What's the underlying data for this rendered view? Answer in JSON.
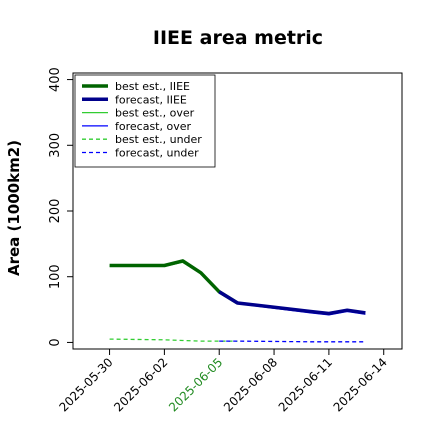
{
  "chart_data": {
    "type": "line",
    "title": "IIEE area metric",
    "xlabel": "",
    "ylabel": "Area (1000km2)",
    "xlim": [
      "2025-05-28",
      "2025-06-15"
    ],
    "ylim": [
      -10,
      410
    ],
    "x_ticks": [
      "2025-05-30",
      "2025-06-02",
      "2025-06-05",
      "2025-06-08",
      "2025-06-11",
      "2025-06-14"
    ],
    "x_tick_colors": [
      "#000000",
      "#000000",
      "#228b22",
      "#000000",
      "#000000",
      "#000000"
    ],
    "y_ticks": [
      0,
      100,
      200,
      300,
      400
    ],
    "grid": false,
    "legend_position": "top-left",
    "series": [
      {
        "name": "best est., IIEE",
        "color": "#006400",
        "style": "solid",
        "weight": "thick",
        "points": [
          {
            "x": "2025-05-30",
            "y": 117
          },
          {
            "x": "2025-06-02",
            "y": 117
          },
          {
            "x": "2025-06-03",
            "y": 124
          },
          {
            "x": "2025-06-04",
            "y": 106
          },
          {
            "x": "2025-06-05",
            "y": 77
          },
          {
            "x": "2025-06-06",
            "y": 60
          }
        ]
      },
      {
        "name": "forecast, IIEE",
        "color": "#00008b",
        "style": "solid",
        "weight": "thick",
        "points": [
          {
            "x": "2025-06-05",
            "y": 77
          },
          {
            "x": "2025-06-06",
            "y": 60
          },
          {
            "x": "2025-06-10",
            "y": 47
          },
          {
            "x": "2025-06-11",
            "y": 44
          },
          {
            "x": "2025-06-12",
            "y": 49
          },
          {
            "x": "2025-06-13",
            "y": 45
          }
        ]
      },
      {
        "name": "best est., over",
        "color": "#32cd32",
        "style": "solid",
        "weight": "thin",
        "points": [
          {
            "x": "2025-05-30",
            "y": 116
          },
          {
            "x": "2025-06-02",
            "y": 116
          },
          {
            "x": "2025-06-03",
            "y": 122
          },
          {
            "x": "2025-06-04",
            "y": 105
          },
          {
            "x": "2025-06-05",
            "y": 75
          },
          {
            "x": "2025-06-06",
            "y": 59
          }
        ]
      },
      {
        "name": "forecast, over",
        "color": "#0000ff",
        "style": "solid",
        "weight": "thin",
        "points": [
          {
            "x": "2025-06-05",
            "y": 75
          },
          {
            "x": "2025-06-06",
            "y": 59
          },
          {
            "x": "2025-06-10",
            "y": 45
          },
          {
            "x": "2025-06-11",
            "y": 42
          },
          {
            "x": "2025-06-12",
            "y": 47
          },
          {
            "x": "2025-06-13",
            "y": 43
          }
        ]
      },
      {
        "name": "best est., under",
        "color": "#32cd32",
        "style": "dashed",
        "weight": "thin",
        "points": [
          {
            "x": "2025-05-30",
            "y": 5
          },
          {
            "x": "2025-06-02",
            "y": 4
          },
          {
            "x": "2025-06-03",
            "y": 3
          },
          {
            "x": "2025-06-04",
            "y": 2
          },
          {
            "x": "2025-06-05",
            "y": 2
          },
          {
            "x": "2025-06-06",
            "y": 2
          }
        ]
      },
      {
        "name": "forecast, under",
        "color": "#0000ff",
        "style": "dashed",
        "weight": "thin",
        "points": [
          {
            "x": "2025-06-05",
            "y": 2
          },
          {
            "x": "2025-06-06",
            "y": 2
          },
          {
            "x": "2025-06-10",
            "y": 1
          },
          {
            "x": "2025-06-11",
            "y": 1
          },
          {
            "x": "2025-06-12",
            "y": 1
          },
          {
            "x": "2025-06-13",
            "y": 1
          }
        ]
      }
    ]
  }
}
